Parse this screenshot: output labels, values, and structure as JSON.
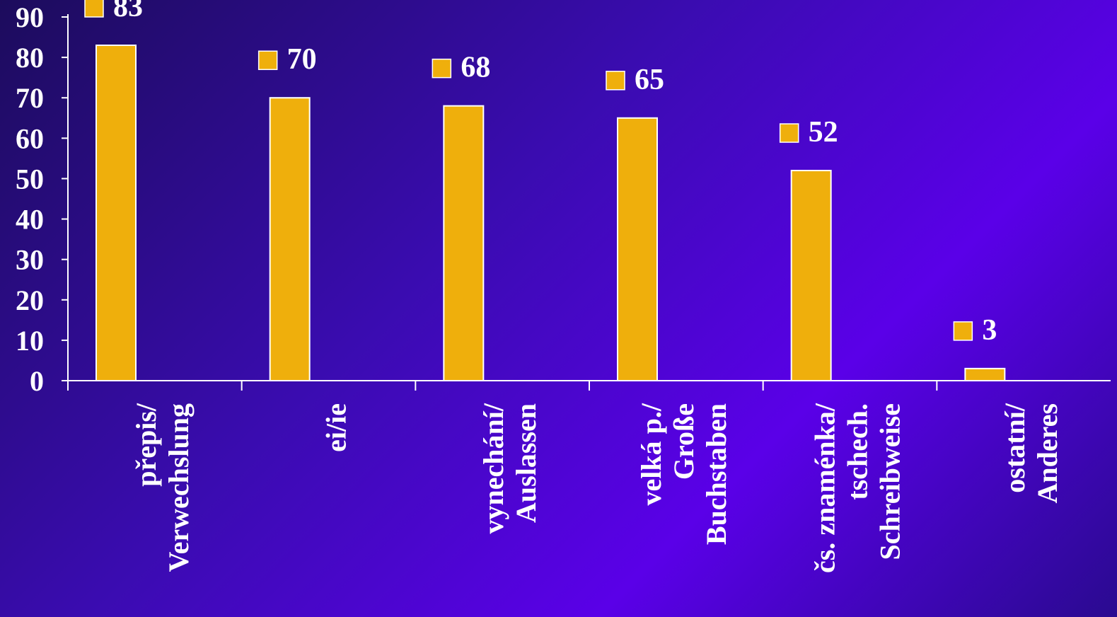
{
  "chart_data": {
    "type": "bar",
    "title": "",
    "xlabel": "",
    "ylabel": "",
    "ylim": [
      0,
      90
    ],
    "yticks": [
      0,
      10,
      20,
      30,
      40,
      50,
      60,
      70,
      80,
      90
    ],
    "grid": false,
    "categories": [
      [
        "přepis/",
        "Verwechslung"
      ],
      [
        "ei/ie"
      ],
      [
        "vynechání/",
        "Auslassen"
      ],
      [
        "velká p./",
        "Große",
        "Buchstaben"
      ],
      [
        "čs. znaménka/",
        "tschech.",
        "Schreibweise"
      ],
      [
        "ostatní/",
        "Anderes"
      ]
    ],
    "values": [
      83,
      70,
      68,
      65,
      52,
      3
    ],
    "data_labels": [
      "83",
      "70",
      "68",
      "65",
      "52",
      "3"
    ],
    "colors": {
      "bar": "#efaf0c",
      "bar_outline": "#ffffff",
      "axis": "#ffffff",
      "text": "#ffffff"
    }
  }
}
